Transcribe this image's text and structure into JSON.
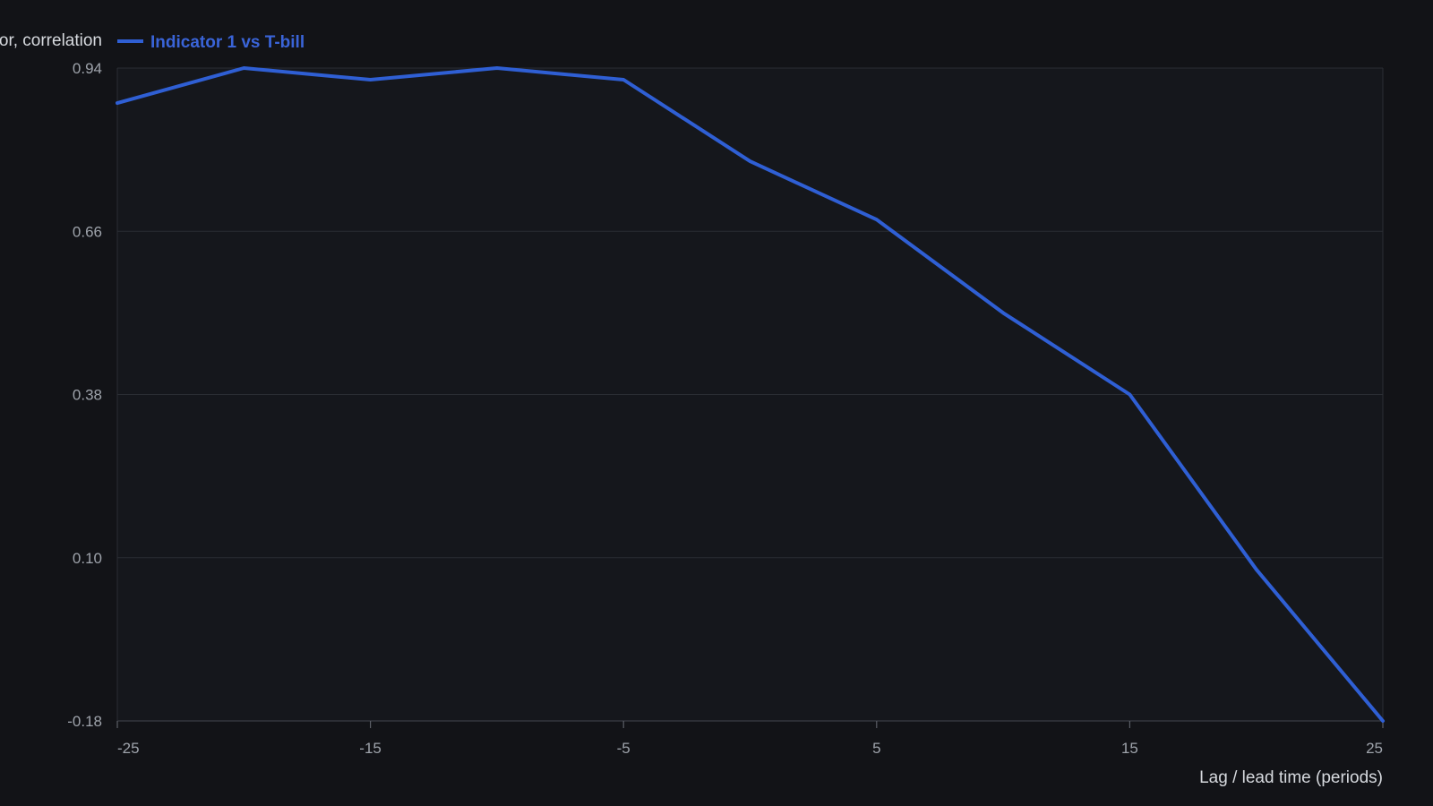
{
  "chart_data": {
    "type": "line",
    "ylabel": "or, correlation",
    "xlabel": "Lag / lead time (periods)",
    "legend": "top-left",
    "grid": true,
    "xlim": [
      -25,
      25
    ],
    "ylim": [
      -0.18,
      0.94
    ],
    "xticks": [
      "-25",
      "-15",
      "-5",
      "5",
      "15",
      "25"
    ],
    "yticks": [
      "0.94",
      "0.66",
      "0.38",
      "0.10",
      "-0.18"
    ],
    "series": [
      {
        "name": "Indicator 1 vs T-bill",
        "color": "#2f5fd4",
        "x": [
          -25,
          -20,
          -15,
          -10,
          -5,
          0,
          5,
          10,
          15,
          20,
          25
        ],
        "y": [
          0.88,
          0.94,
          0.92,
          0.94,
          0.92,
          0.78,
          0.68,
          0.52,
          0.38,
          0.08,
          -0.18
        ]
      }
    ]
  },
  "colors": {
    "background": "#121317",
    "plot_background": "#15171c",
    "grid": "#2a2d33",
    "tick_text": "#9ea3ab",
    "axis_title": "#d6d9de"
  }
}
